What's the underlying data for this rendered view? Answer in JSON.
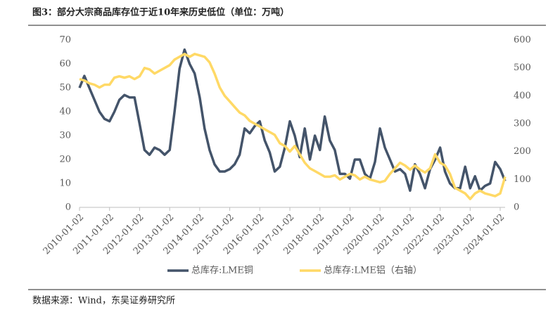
{
  "chart_data": {
    "type": "line",
    "title": "图3：部分大宗商品库存位于近10年来历史低位（单位：万吨）",
    "source": "数据来源：Wind，东吴证券研究所",
    "x": [
      "2010-01-02",
      "2010-03-02",
      "2010-05-02",
      "2010-07-02",
      "2010-09-02",
      "2010-11-02",
      "2011-01-02",
      "2011-03-02",
      "2011-05-02",
      "2011-07-02",
      "2011-09-02",
      "2011-11-02",
      "2012-01-02",
      "2012-03-02",
      "2012-05-02",
      "2012-07-02",
      "2012-09-02",
      "2012-11-02",
      "2013-01-02",
      "2013-03-02",
      "2013-05-02",
      "2013-07-02",
      "2013-09-02",
      "2013-11-02",
      "2014-01-02",
      "2014-03-02",
      "2014-05-02",
      "2014-07-02",
      "2014-09-02",
      "2014-11-02",
      "2015-01-02",
      "2015-03-02",
      "2015-05-02",
      "2015-07-02",
      "2015-09-02",
      "2015-11-02",
      "2016-01-02",
      "2016-03-02",
      "2016-05-02",
      "2016-07-02",
      "2016-09-02",
      "2016-11-02",
      "2017-01-02",
      "2017-03-02",
      "2017-05-02",
      "2017-07-02",
      "2017-09-02",
      "2017-11-02",
      "2018-01-02",
      "2018-03-02",
      "2018-05-02",
      "2018-07-02",
      "2018-09-02",
      "2018-11-02",
      "2019-01-02",
      "2019-03-02",
      "2019-05-02",
      "2019-07-02",
      "2019-09-02",
      "2019-11-02",
      "2020-01-02",
      "2020-03-02",
      "2020-05-02",
      "2020-07-02",
      "2020-09-02",
      "2020-11-02",
      "2021-01-02",
      "2021-03-02",
      "2021-05-02",
      "2021-07-02",
      "2021-09-02",
      "2021-11-02",
      "2022-01-02",
      "2022-03-02",
      "2022-05-02",
      "2022-07-02",
      "2022-09-02",
      "2022-11-02",
      "2023-01-02",
      "2023-03-02",
      "2023-05-02",
      "2023-07-02",
      "2023-09-02",
      "2023-11-02",
      "2024-01-02",
      "2024-03-02"
    ],
    "series": [
      {
        "name": "总库存:LME铜",
        "color": "#44546a",
        "values": [
          50,
          55,
          50,
          45,
          40,
          37,
          36,
          40,
          45,
          47,
          46,
          46,
          35,
          24,
          22,
          25,
          24,
          22,
          24,
          40,
          58,
          66,
          60,
          56,
          46,
          33,
          24,
          18,
          15,
          15,
          16,
          18,
          22,
          33,
          31,
          34,
          36,
          28,
          23,
          15,
          17,
          25,
          36,
          30,
          21,
          33,
          20,
          30,
          24,
          38,
          28,
          24,
          14,
          14,
          12,
          20,
          20,
          14,
          12,
          19,
          33,
          25,
          20,
          15,
          16,
          14,
          7,
          18,
          14,
          8,
          16,
          20,
          25,
          15,
          10,
          8,
          8,
          17,
          8,
          13,
          7,
          9,
          10,
          19,
          16,
          11
        ]
      },
      {
        "name": "总库存:LME铝（右轴）",
        "color": "#ffd966",
        "axis": "y2",
        "values": [
          460,
          455,
          445,
          440,
          430,
          440,
          440,
          465,
          470,
          465,
          470,
          460,
          470,
          500,
          495,
          480,
          490,
          500,
          510,
          530,
          540,
          550,
          540,
          550,
          545,
          540,
          520,
          480,
          430,
          400,
          380,
          360,
          340,
          330,
          310,
          300,
          290,
          280,
          270,
          260,
          230,
          220,
          200,
          220,
          190,
          160,
          140,
          130,
          120,
          110,
          110,
          115,
          100,
          110,
          120,
          115,
          100,
          110,
          100,
          95,
          90,
          95,
          120,
          140,
          160,
          150,
          135,
          150,
          135,
          125,
          140,
          190,
          160,
          150,
          120,
          70,
          60,
          50,
          30,
          50,
          60,
          50,
          45,
          40,
          50,
          110
        ]
      }
    ],
    "xlim": [
      "2010-01-02",
      "2024-03-02"
    ],
    "xticks": [
      "2010-01-02",
      "2011-01-02",
      "2012-01-02",
      "2013-01-02",
      "2014-01-02",
      "2015-01-02",
      "2016-01-02",
      "2017-01-02",
      "2018-01-02",
      "2019-01-02",
      "2020-01-02",
      "2021-01-02",
      "2022-01-02",
      "2023-01-02",
      "2024-01-02"
    ],
    "ylim": [
      0,
      70
    ],
    "yticks": [
      0,
      10,
      20,
      30,
      40,
      50,
      60,
      70
    ],
    "y2lim": [
      0,
      600
    ],
    "y2ticks": [
      0,
      100,
      200,
      300,
      400,
      500,
      600
    ],
    "legend": "bottom"
  }
}
